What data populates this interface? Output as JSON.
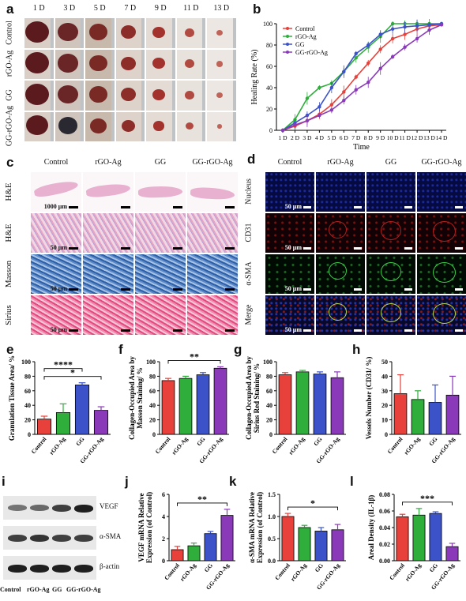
{
  "panels": {
    "a": "a",
    "b": "b",
    "c": "c",
    "d": "d",
    "e": "e",
    "f": "f",
    "g": "g",
    "h": "h",
    "i": "i",
    "j": "j",
    "k": "k",
    "l": "l"
  },
  "a": {
    "days": [
      "1 D",
      "3 D",
      "5 D",
      "7 D",
      "9 D",
      "11 D",
      "13 D"
    ],
    "groups": [
      "Control",
      "rGO-Ag",
      "GG",
      "GG-rGO-Ag"
    ]
  },
  "c": {
    "cols": [
      "Control",
      "rGO-Ag",
      "GG",
      "GG-rGO-Ag"
    ],
    "rows": [
      "H&E",
      "H&E",
      "Masson",
      "Sirius"
    ],
    "scale_1": "1000 μm",
    "scale_2": "50 μm"
  },
  "d": {
    "cols": [
      "Control",
      "rGO-Ag",
      "GG",
      "GG-rGO-Ag"
    ],
    "rows": [
      "Nucleus",
      "CD31",
      "α-SMA",
      "Merge"
    ],
    "scale": "50 μm"
  },
  "i": {
    "bands": [
      "VEGF",
      "α-SMA",
      "β-actin"
    ],
    "lanes": [
      "Control",
      "rGO-Ag",
      "GG",
      "GG-rGO-Ag"
    ]
  },
  "colors": {
    "control": "#e8403a",
    "rgo": "#2fae3c",
    "gg": "#3b52c8",
    "ggrgo": "#8a3ab9"
  },
  "chart_data": [
    {
      "id": "b",
      "type": "line",
      "xlabel": "Time",
      "ylabel": "Healing Rate (%)",
      "ylim": [
        0,
        100
      ],
      "yticks": [
        0,
        20,
        40,
        60,
        80,
        100
      ],
      "categories": [
        "1 D",
        "2 D",
        "3 D",
        "4 D",
        "5 D",
        "6 D",
        "7 D",
        "8 D",
        "9 D",
        "10 D",
        "11 D",
        "12 D",
        "13 D",
        "14 D"
      ],
      "legend": "top-left",
      "series": [
        {
          "name": "Control",
          "color": "#e8403a",
          "values": [
            0,
            4,
            9,
            15,
            24,
            36,
            50,
            63,
            76,
            86,
            90,
            95,
            98,
            99
          ]
        },
        {
          "name": "rGO-Ag",
          "color": "#2fae3c",
          "values": [
            0,
            10,
            30,
            40,
            44,
            55,
            68,
            78,
            88,
            100,
            100,
            100,
            100,
            100
          ]
        },
        {
          "name": "GG",
          "color": "#3b52c8",
          "values": [
            0,
            7,
            14,
            22,
            40,
            55,
            72,
            80,
            90,
            95,
            97,
            98,
            99,
            100
          ]
        },
        {
          "name": "GG-rGO-Ag",
          "color": "#8a3ab9",
          "values": [
            0,
            5,
            9,
            14,
            19,
            28,
            38,
            45,
            58,
            69,
            78,
            86,
            94,
            99
          ]
        }
      ]
    },
    {
      "id": "e",
      "type": "bar",
      "ylabel": "Granulation Tissue Area/ %",
      "ylim": [
        0,
        100
      ],
      "yticks": [
        0,
        20,
        40,
        60,
        80,
        100
      ],
      "categories": [
        "Control",
        "rGO-Ag",
        "GG",
        "GG-rGO-Ag"
      ],
      "values": [
        21,
        30,
        68,
        33
      ],
      "errors": [
        4,
        12,
        3,
        5
      ],
      "significance": [
        {
          "from": 0,
          "to": 3,
          "label": "*"
        },
        {
          "from": 0,
          "to": 2,
          "label": "****"
        }
      ]
    },
    {
      "id": "f",
      "type": "bar",
      "ylabel": "Collagen-Occupied Area by Masson Staining/ %",
      "ylim": [
        0,
        100
      ],
      "yticks": [
        0,
        20,
        40,
        60,
        80,
        100
      ],
      "categories": [
        "Control",
        "rGO-Ag",
        "GG",
        "GG-rGO-Ag"
      ],
      "values": [
        74,
        77,
        82,
        91
      ],
      "errors": [
        3,
        3,
        3,
        2
      ],
      "significance": [
        {
          "from": 0,
          "to": 3,
          "label": "**"
        }
      ]
    },
    {
      "id": "g",
      "type": "bar",
      "ylabel": "Collagen-Occupied Area by Sirius Red Staining/ %",
      "ylim": [
        0,
        100
      ],
      "yticks": [
        0,
        20,
        40,
        60,
        80,
        100
      ],
      "categories": [
        "Control",
        "rGO-Ag",
        "GG",
        "GG-rGO-Ag"
      ],
      "values": [
        82,
        86,
        83,
        78
      ],
      "errors": [
        3,
        2,
        3,
        8
      ],
      "significance": []
    },
    {
      "id": "h",
      "type": "bar",
      "ylabel": "Vessels Number (CD31/ %)",
      "ylim": [
        0,
        50
      ],
      "yticks": [
        0,
        10,
        20,
        30,
        40,
        50
      ],
      "categories": [
        "Control",
        "rGO-Ag",
        "GG",
        "GG-rGO-Ag"
      ],
      "values": [
        28,
        24,
        22,
        27
      ],
      "errors": [
        13,
        6,
        12,
        13
      ],
      "significance": []
    },
    {
      "id": "j",
      "type": "bar",
      "ylabel": "VEGF mRNA Relative Expression (of Control)",
      "ylim": [
        0,
        6
      ],
      "yticks": [
        0,
        2,
        4,
        6
      ],
      "categories": [
        "Control",
        "rGO-Ag",
        "GG",
        "GG-rGO-Ag"
      ],
      "values": [
        1.0,
        1.35,
        2.45,
        4.1
      ],
      "errors": [
        0.3,
        0.25,
        0.2,
        0.55
      ],
      "significance": [
        {
          "from": 0,
          "to": 3,
          "label": "**"
        }
      ]
    },
    {
      "id": "k",
      "type": "bar",
      "ylabel": "α-SMA mRNA Relative Expression (of Control)",
      "ylim": [
        0,
        1.5
      ],
      "yticks": [
        0.0,
        0.5,
        1.0,
        1.5
      ],
      "categories": [
        "Control",
        "rGO-Ag",
        "GG",
        "GG-rGO-Ag"
      ],
      "values": [
        1.0,
        0.75,
        0.67,
        0.7
      ],
      "errors": [
        0.07,
        0.05,
        0.08,
        0.12
      ],
      "significance": [
        {
          "from": 0,
          "to": 3,
          "label": "*"
        }
      ]
    },
    {
      "id": "l",
      "type": "bar",
      "ylabel": "Areal Density (IL-1β)",
      "ylim": [
        0,
        0.08
      ],
      "yticks": [
        0.0,
        0.02,
        0.04,
        0.06,
        0.08
      ],
      "categories": [
        "Control",
        "rGO-Ag",
        "GG",
        "GG-rGO-Ag"
      ],
      "values": [
        0.053,
        0.055,
        0.057,
        0.017
      ],
      "errors": [
        0.003,
        0.008,
        0.002,
        0.004
      ],
      "significance": [
        {
          "from": 0,
          "to": 3,
          "label": "***"
        }
      ]
    }
  ]
}
